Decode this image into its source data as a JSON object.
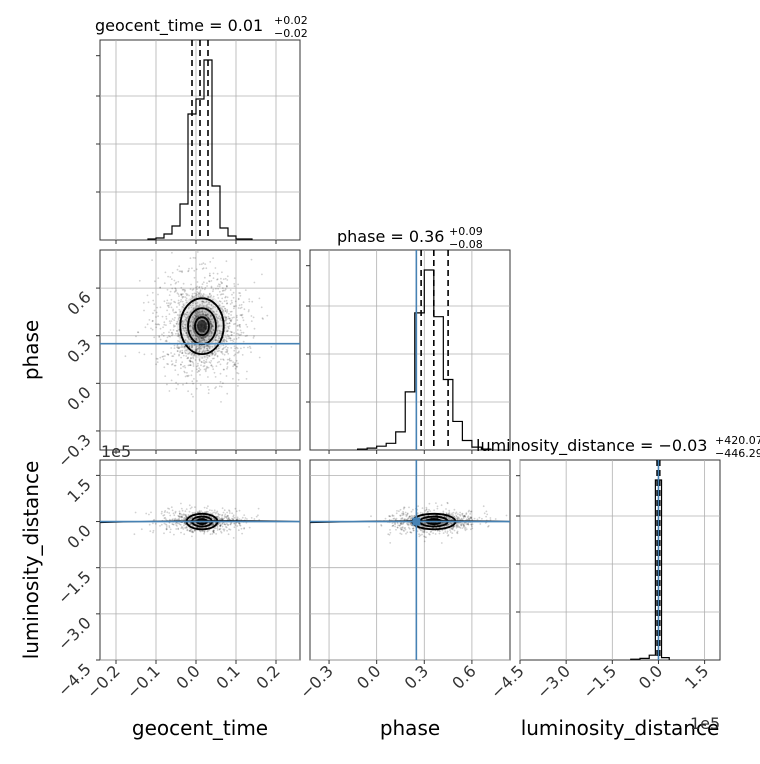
{
  "chart_data": {
    "type": "corner",
    "parameters": [
      "geocent_time",
      "phase",
      "luminosity_distance"
    ],
    "axis_labels": {
      "geocent_time": "geocent_time",
      "phase": "phase",
      "luminosity_distance": "luminosity_distance"
    },
    "titles": {
      "geocent_time": {
        "label": "geocent_time",
        "median": "0.01",
        "plus": "+0.02",
        "minus": "−0.02"
      },
      "phase": {
        "label": "phase",
        "median": "0.36",
        "plus": "+0.09",
        "minus": "−0.08"
      },
      "luminosity_distance": {
        "label": "luminosity_distance",
        "median": "−0.03",
        "plus": "+420.07",
        "minus": "−446.29"
      }
    },
    "ranges": {
      "geocent_time": [
        -0.24,
        0.26
      ],
      "phase": [
        -0.42,
        0.84
      ],
      "luminosity_distance": [
        -450000,
        200000
      ]
    },
    "ticks": {
      "geocent_time": {
        "values": [
          -0.2,
          -0.1,
          0.0,
          0.1,
          0.2
        ],
        "labels": [
          "−0.2",
          "−0.1",
          "0.0",
          "0.1",
          "0.2"
        ]
      },
      "phase": {
        "values": [
          -0.3,
          0.0,
          0.3,
          0.6
        ],
        "labels": [
          "−0.3",
          "0.0",
          "0.3",
          "0.6"
        ]
      },
      "luminosity_distance": {
        "values": [
          -4.5,
          -3.0,
          -1.5,
          0.0,
          1.5
        ],
        "labels": [
          "−4.5",
          "−3.0",
          "−1.5",
          "0.0",
          "1.5"
        ],
        "offset": "1e5"
      }
    },
    "truths": {
      "phase": 0.25,
      "luminosity_distance": 0
    },
    "quantile_lines": {
      "geocent_time": [
        -0.01,
        0.01,
        0.03
      ],
      "phase": [
        0.28,
        0.36,
        0.45
      ],
      "luminosity_distance": [
        -0.0446,
        -0.0,
        0.042
      ]
    },
    "histograms": {
      "geocent_time": {
        "bins": [
          -0.12,
          -0.1,
          -0.08,
          -0.06,
          -0.04,
          -0.02,
          0.0,
          0.02,
          0.04,
          0.06,
          0.08,
          0.1,
          0.12,
          0.14
        ],
        "counts": [
          1,
          2,
          6,
          14,
          36,
          126,
          141,
          180,
          54,
          12,
          4,
          1,
          1
        ]
      },
      "phase": {
        "bins": [
          -0.12,
          -0.06,
          0.0,
          0.06,
          0.12,
          0.18,
          0.24,
          0.3,
          0.36,
          0.42,
          0.48,
          0.54,
          0.6,
          0.66,
          0.72
        ],
        "counts": [
          1,
          2,
          4,
          7,
          19,
          61,
          144,
          189,
          140,
          74,
          30,
          10,
          3,
          1
        ]
      },
      "luminosity_distance": {
        "bins": [
          -0.9,
          -0.6,
          -0.3,
          -0.1,
          0.1,
          0.35
        ],
        "counts": [
          1,
          2,
          6,
          225,
          3
        ]
      }
    }
  }
}
